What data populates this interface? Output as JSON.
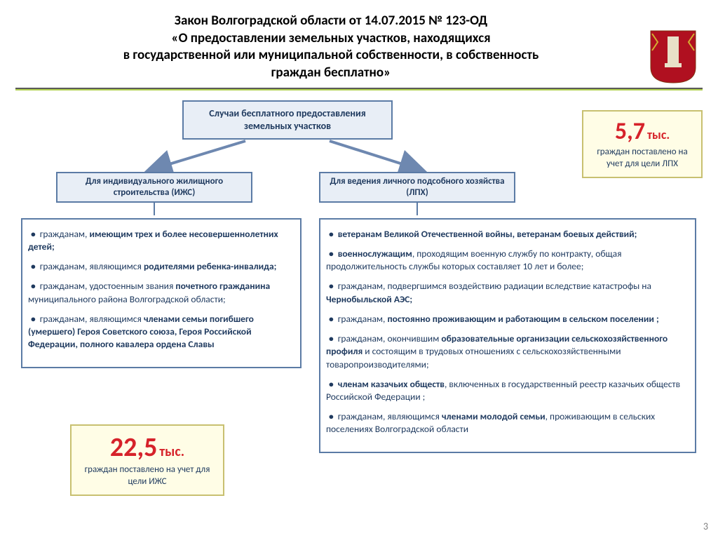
{
  "title_line1": "Закон Волгоградской области от 14.07.2015  № 123-ОД",
  "title_line2": "«О предоставлении земельных участков, находящихся",
  "title_line3": "в государственной или муниципальной собственности, в собственность",
  "title_line4": "граждан бесплатно»",
  "emblem": {
    "shield_fill": "#b01020",
    "gold": "#d4b030"
  },
  "main_block": "Случаи бесплатного предоставления земельных участков",
  "sub_left": "Для индивидуального жилищного строительства  (ИЖС)",
  "sub_right": "Для ведения личного подсобного хозяйства (ЛПХ)",
  "colors": {
    "block_bg": "#e8eef6",
    "block_border": "#5b7ba5",
    "text": "#1f3a5f",
    "stat_bg": "#fffde6",
    "stat_border": "#c8c070",
    "stat_number": "#d6222a",
    "arrow": "#6e88b0"
  },
  "left_list": [
    {
      "prefix": "гражданам, ",
      "bold": "имеющим трех и более несовершеннолетних детей;"
    },
    {
      "prefix": "гражданам, являющимся ",
      "bold": "родителями ребенка-инвалида;"
    },
    {
      "prefix": "гражданам, удостоенным звания ",
      "bold": "почетного гражданина",
      "suffix": " муниципального района Волгоградской области;"
    },
    {
      "prefix": "гражданам, являющимся ",
      "bold": "членами семьи погибшего (умершего) Героя Советского союза, Героя Российской Федерации, полного кавалера ордена Славы"
    }
  ],
  "right_list": [
    {
      "bold": "ветеранам Великой Отечественной войны, ветеранам боевых действий;"
    },
    {
      "bold": "военнослужащим",
      "suffix": ", проходящим военную службу по контракту, общая продолжительность службы которых составляет 10 лет и более;"
    },
    {
      "prefix": "гражданам, подвергшимся воздействию радиации вследствие катастрофы на ",
      "bold": "Чернобыльской АЭС;"
    },
    {
      "prefix": "гражданам, ",
      "bold": "постоянно проживающим и работающим в сельском поселении ;"
    },
    {
      "prefix": "гражданам, окончившим ",
      "bold": "образовательные организации сельскохозяйственного профиля",
      "suffix": " и состоящим в трудовых отношениях с сельскохозяйственными товаропроизводителями;"
    },
    {
      "bold": "членам казачьих обществ",
      "suffix": ", включенных в государственный реестр казачьих обществ Российской Федерации ;"
    },
    {
      "prefix": "гражданам, являющимся ",
      "bold": "членами молодой семьи",
      "suffix": ", проживающим в сельских поселениях Волгоградской области"
    }
  ],
  "stat_right": {
    "number": "5,7",
    "unit": "тыс.",
    "caption": "граждан поставлено на учет для цели ЛПХ"
  },
  "stat_left": {
    "number": "22,5",
    "unit": "тыс.",
    "caption": "граждан поставлено на учет для цели ИЖС"
  },
  "page_number": "3"
}
